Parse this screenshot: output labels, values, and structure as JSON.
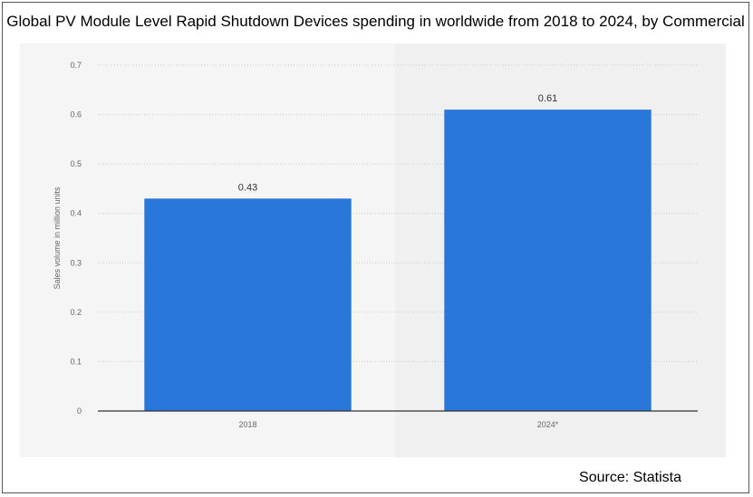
{
  "title": "Global PV Module Level Rapid Shutdown Devices spending in worldwide from 2018 to 2024, by Commercial",
  "source": "Source: Statista",
  "colors": {
    "bar": "#2a77dc",
    "grid": "#cccccc",
    "axis": "#333333",
    "tick_text": "#666666",
    "plot_band": "#f0f0f0"
  },
  "chart_data": {
    "type": "bar",
    "categories": [
      "2018",
      "2024*"
    ],
    "values": [
      0.43,
      0.61
    ],
    "data_labels": [
      "0.43",
      "0.61"
    ],
    "ylabel": "Sales volume in million units",
    "ylim": [
      0,
      0.7
    ],
    "yticks": [
      0,
      0.1,
      0.2,
      0.3,
      0.4,
      0.5,
      0.6,
      0.7
    ],
    "ytick_labels": [
      "0",
      "0.1",
      "0.2",
      "0.3",
      "0.4",
      "0.5",
      "0.6",
      "0.7"
    ],
    "grid": true,
    "legend": "none"
  }
}
